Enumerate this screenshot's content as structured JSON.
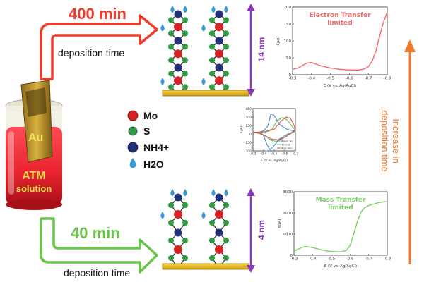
{
  "time_high": {
    "label": "400 min",
    "sublabel": "deposition time",
    "color": "#f03a2a"
  },
  "time_low": {
    "label": "40 min",
    "sublabel": "deposition time",
    "color": "#6ac44a"
  },
  "vial": {
    "metal_label": "Au",
    "solution_line1": "ATM",
    "solution_line2": "solution"
  },
  "legend": {
    "items": [
      {
        "label": "Mo",
        "color": "#d62222"
      },
      {
        "label": "S",
        "color": "#2e9b3e"
      },
      {
        "label": "NH4+",
        "color": "#22307a"
      },
      {
        "label": "H2O",
        "color": "#3a9ad9"
      }
    ]
  },
  "thickness": {
    "top": "14 nm",
    "bottom": "4 nm",
    "color": "#8a3ab9"
  },
  "increase_label": {
    "line1": "Increase in",
    "line2": "deposition time",
    "color": "#f07a2a"
  },
  "colors": {
    "mo": "#d62222",
    "s": "#2e9b3e",
    "nh4": "#22307a",
    "h2o": "#3a9ad9",
    "substrate": "#e8b820",
    "bond": "#2a2a2a"
  },
  "chart_data": [
    {
      "type": "line",
      "title": "Electron Transfer limited",
      "ylabel": "I(μA)",
      "xlabel": "E (V vs. Ag/AgCl)",
      "xlim": [
        -0.3,
        -0.8
      ],
      "ylim": [
        0,
        200
      ],
      "xticks": [
        "-0.3",
        "-0.4",
        "-0.5",
        "-0.6",
        "-0.7",
        "-0.8"
      ],
      "yticks": [
        "0",
        "50",
        "100",
        "150",
        "200"
      ],
      "series": [
        {
          "color": "#ef6a6a",
          "x": [
            -0.3,
            -0.33,
            -0.36,
            -0.38,
            -0.4,
            -0.42,
            -0.45,
            -0.5,
            -0.55,
            -0.6,
            -0.65,
            -0.68,
            -0.7,
            -0.72,
            -0.74,
            -0.76,
            -0.78,
            -0.8
          ],
          "y": [
            16,
            20,
            30,
            35,
            36,
            32,
            26,
            20,
            16,
            14,
            14,
            17,
            24,
            40,
            70,
            115,
            155,
            185
          ]
        }
      ]
    },
    {
      "type": "line",
      "title": "",
      "ylabel": "I(μA)",
      "xlabel": "E (V vs. Ag/AgCl)",
      "xlim": [
        -0.3,
        -0.7
      ],
      "ylim": [
        -350,
        450
      ],
      "xticks": [
        "-0.3",
        "-0.4",
        "-0.5",
        "-0.6",
        "-0.7"
      ],
      "yticks": [
        "450",
        "300",
        "150",
        "0",
        "-150",
        "-300"
      ],
      "series": [
        {
          "name": "Blank Au",
          "color": "#4a8ad9",
          "x": [
            -0.3,
            -0.36,
            -0.4,
            -0.44,
            -0.47,
            -0.5,
            -0.55,
            -0.62,
            -0.7,
            -0.62,
            -0.55,
            -0.5,
            -0.46,
            -0.43,
            -0.4,
            -0.36,
            -0.3
          ],
          "y": [
            0,
            5,
            30,
            120,
            350,
            320,
            150,
            60,
            20,
            -40,
            -120,
            -250,
            -330,
            -220,
            -60,
            -10,
            0
          ]
        },
        {
          "name": "40 min",
          "color": "#5cbf4a",
          "x": [
            -0.3,
            -0.4,
            -0.48,
            -0.53,
            -0.58,
            -0.62,
            -0.66,
            -0.7,
            -0.64,
            -0.58,
            -0.52,
            -0.47,
            -0.43,
            -0.38,
            -0.3
          ],
          "y": [
            0,
            10,
            60,
            230,
            280,
            240,
            140,
            40,
            -30,
            -120,
            -170,
            -150,
            -90,
            -20,
            0
          ]
        },
        {
          "name": "400 min",
          "color": "#e05050",
          "x": [
            -0.3,
            -0.42,
            -0.5,
            -0.56,
            -0.61,
            -0.65,
            -0.68,
            -0.7,
            -0.66,
            -0.6,
            -0.54,
            -0.48,
            -0.42,
            -0.36,
            -0.3
          ],
          "y": [
            0,
            10,
            60,
            200,
            290,
            270,
            170,
            60,
            -20,
            -90,
            -140,
            -130,
            -70,
            -20,
            0
          ]
        }
      ]
    },
    {
      "type": "line",
      "title": "Mass Transfer limited",
      "ylabel": "I(μA)",
      "xlabel": "E (V vs. Ag/AgCl)",
      "xlim": [
        -0.3,
        -0.8
      ],
      "ylim": [
        0,
        3000
      ],
      "xticks": [
        "-0.3",
        "-0.4",
        "-0.5",
        "-0.6",
        "-0.7",
        "-0.8"
      ],
      "yticks": [
        "0",
        "1000",
        "2000",
        "3000"
      ],
      "series": [
        {
          "color": "#7fcf6a",
          "x": [
            -0.3,
            -0.33,
            -0.36,
            -0.4,
            -0.45,
            -0.5,
            -0.55,
            -0.58,
            -0.6,
            -0.62,
            -0.64,
            -0.66,
            -0.68,
            -0.7,
            -0.72,
            -0.75,
            -0.78,
            -0.8
          ],
          "y": [
            200,
            320,
            420,
            360,
            250,
            180,
            160,
            220,
            450,
            1000,
            1600,
            2050,
            2250,
            2350,
            2400,
            2480,
            2520,
            2540
          ]
        }
      ]
    }
  ]
}
